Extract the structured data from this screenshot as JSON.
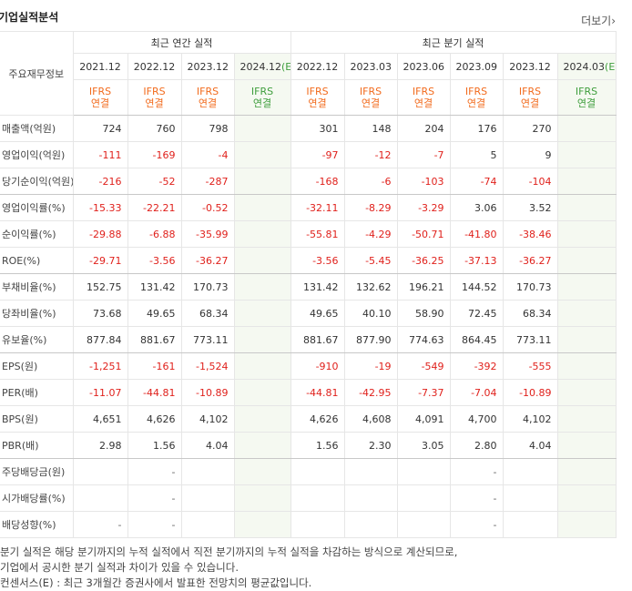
{
  "header": {
    "title": "기업실적분석",
    "more": "더보기"
  },
  "table": {
    "corner": "주요재무정보",
    "groups": [
      {
        "label": "최근 연간 실적",
        "span": 4
      },
      {
        "label": "최근 분기 실적",
        "span": 6
      }
    ],
    "periods": [
      {
        "date": "2021.12"
      },
      {
        "date": "2022.12"
      },
      {
        "date": "2023.12"
      },
      {
        "date": "2024.12",
        "estimate": "(E)"
      },
      {
        "date": "2022.12"
      },
      {
        "date": "2023.03"
      },
      {
        "date": "2023.06"
      },
      {
        "date": "2023.09"
      },
      {
        "date": "2023.12"
      },
      {
        "date": "2024.03",
        "estimate": "(E)"
      }
    ],
    "standard": [
      "IFRS 연결",
      "IFRS 연결",
      "IFRS 연결",
      "IFRS 연결",
      "IFRS 연결",
      "IFRS 연결",
      "IFRS 연결",
      "IFRS 연결",
      "IFRS 연결",
      "IFRS 연결"
    ],
    "rows": [
      {
        "label": "매출액(억원)",
        "cells": [
          "724",
          "760",
          "798",
          null,
          "301",
          "148",
          "204",
          "176",
          "270",
          null
        ]
      },
      {
        "label": "영업이익(억원)",
        "cells": [
          "-111",
          "-169",
          "-4",
          null,
          "-97",
          "-12",
          "-7",
          "5",
          "9",
          null
        ]
      },
      {
        "label": "당기순이익(억원)",
        "cells": [
          "-216",
          "-52",
          "-287",
          null,
          "-168",
          "-6",
          "-103",
          "-74",
          "-104",
          null
        ]
      },
      {
        "label": "영업이익률(%)",
        "cells": [
          "-15.33",
          "-22.21",
          "-0.52",
          null,
          "-32.11",
          "-8.29",
          "-3.29",
          "3.06",
          "3.52",
          null
        ]
      },
      {
        "label": "순이익률(%)",
        "cells": [
          "-29.88",
          "-6.88",
          "-35.99",
          null,
          "-55.81",
          "-4.29",
          "-50.71",
          "-41.80",
          "-38.46",
          null
        ]
      },
      {
        "label": "ROE(%)",
        "cells": [
          "-29.71",
          "-3.56",
          "-36.27",
          null,
          "-3.56",
          "-5.45",
          "-36.25",
          "-37.13",
          "-36.27",
          null
        ]
      },
      {
        "label": "부채비율(%)",
        "cells": [
          "152.75",
          "131.42",
          "170.73",
          null,
          "131.42",
          "132.62",
          "196.21",
          "144.52",
          "170.73",
          null
        ]
      },
      {
        "label": "당좌비율(%)",
        "cells": [
          "73.68",
          "49.65",
          "68.34",
          null,
          "49.65",
          "40.10",
          "58.90",
          "72.45",
          "68.34",
          null
        ]
      },
      {
        "label": "유보율(%)",
        "cells": [
          "877.84",
          "881.67",
          "773.11",
          null,
          "881.67",
          "877.90",
          "774.63",
          "864.45",
          "773.11",
          null
        ]
      },
      {
        "label": "EPS(원)",
        "cells": [
          "-1,251",
          "-161",
          "-1,524",
          null,
          "-910",
          "-19",
          "-549",
          "-392",
          "-555",
          null
        ]
      },
      {
        "label": "PER(배)",
        "cells": [
          "-11.07",
          "-44.81",
          "-10.89",
          null,
          "-44.81",
          "-42.95",
          "-7.37",
          "-7.04",
          "-10.89",
          null
        ]
      },
      {
        "label": "BPS(원)",
        "cells": [
          "4,651",
          "4,626",
          "4,102",
          null,
          "4,626",
          "4,608",
          "4,091",
          "4,700",
          "4,102",
          null
        ]
      },
      {
        "label": "PBR(배)",
        "cells": [
          "2.98",
          "1.56",
          "4.04",
          null,
          "1.56",
          "2.30",
          "3.05",
          "2.80",
          "4.04",
          null
        ]
      },
      {
        "label": "주당배당금(원)",
        "cells": [
          null,
          "-",
          null,
          null,
          null,
          null,
          null,
          "-",
          null,
          null
        ]
      },
      {
        "label": "시가배당률(%)",
        "cells": [
          null,
          "-",
          null,
          null,
          null,
          null,
          null,
          "-",
          null,
          null
        ]
      },
      {
        "label": "배당성향(%)",
        "cells": [
          "-",
          "-",
          null,
          null,
          null,
          null,
          null,
          "-",
          null,
          null
        ]
      }
    ]
  },
  "notes": [
    "분기 실적은 해당 분기까지의 누적 실적에서 직전 분기까지의 누적 실적을 차감하는 방식으로 계산되므로,",
    "기업에서 공시한 분기 실적과 차이가 있을 수 있습니다.",
    "컨센서스(E) : 최근 3개월간 증권사에서 발표한 전망치의 평균값입니다."
  ]
}
